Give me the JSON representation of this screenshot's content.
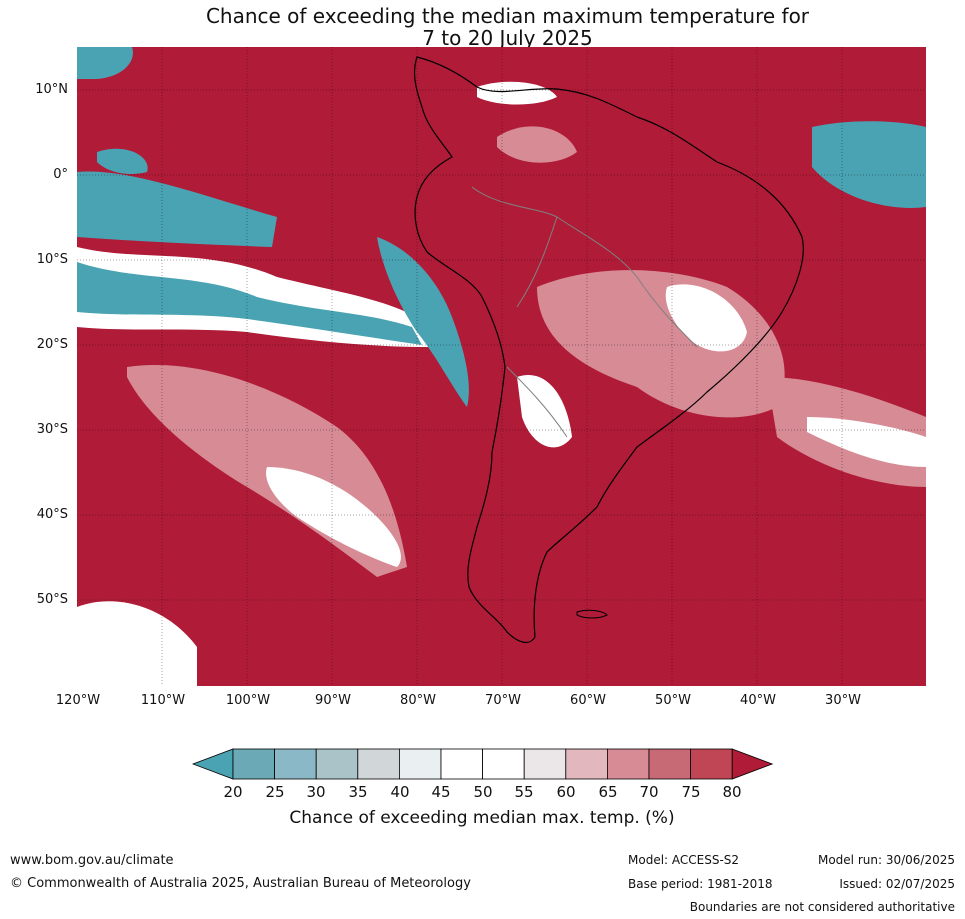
{
  "title_line1": "Chance of exceeding the median maximum temperature for",
  "title_line2": "7 to 20 July 2025",
  "lat_labels": [
    "10°N",
    "0°",
    "10°S",
    "20°S",
    "30°S",
    "40°S",
    "50°S"
  ],
  "lon_labels": [
    "120°W",
    "110°W",
    "100°W",
    "90°W",
    "80°W",
    "70°W",
    "60°W",
    "50°W",
    "40°W",
    "30°W"
  ],
  "colorbar": {
    "labels": [
      "20",
      "25",
      "30",
      "35",
      "40",
      "45",
      "50",
      "55",
      "60",
      "65",
      "70",
      "75",
      "80"
    ],
    "colors": [
      "#4aa3b3",
      "#6ca9b6",
      "#8ab8c6",
      "#a9c3c8",
      "#d1d7d9",
      "#eaf0f2",
      "#ffffff",
      "#ffffff",
      "#ebe6e8",
      "#e2b7bd",
      "#d68b95",
      "#c86a76",
      "#c04656",
      "#b01b38"
    ],
    "title": "Chance of exceeding median max. temp. (%)"
  },
  "colors": {
    "high": "#b01b38",
    "low": "#4aa3b3",
    "land_outline": "#000000",
    "border": "#808080"
  },
  "footer": {
    "website": "www.bom.gov.au/climate",
    "copyright": "© Commonwealth of Australia 2025, Australian Bureau of Meteorology",
    "model": "Model: ACCESS-S2",
    "base_period": "Base period: 1981-2018",
    "model_run": "Model run: 30/06/2025",
    "issued": "Issued: 02/07/2025",
    "disclaimer": "Boundaries are not considered authoritative"
  }
}
